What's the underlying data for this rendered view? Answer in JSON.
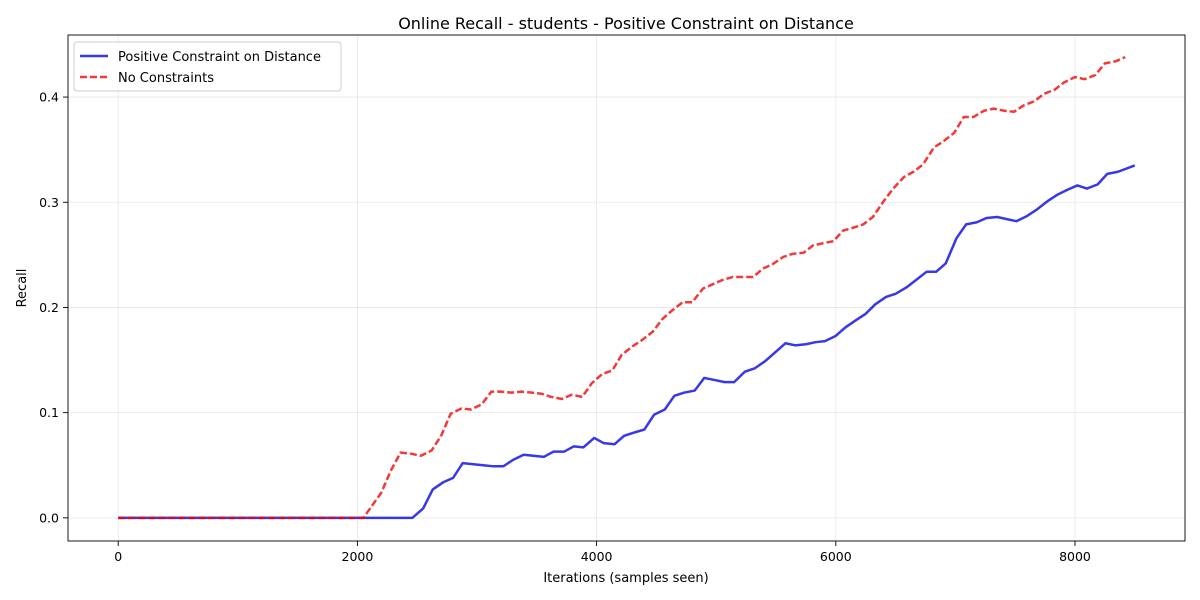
{
  "chart_data": {
    "type": "line",
    "title": "Online Recall - students - Positive Constraint on Distance",
    "xlabel": "Iterations (samples seen)",
    "ylabel": "Recall",
    "xlim": [
      -420,
      8920
    ],
    "ylim": [
      -0.022,
      0.459
    ],
    "xticks": [
      0,
      2000,
      4000,
      6000,
      8000
    ],
    "xtick_labels": [
      "0",
      "2000",
      "4000",
      "6000",
      "8000"
    ],
    "yticks": [
      0.0,
      0.1,
      0.2,
      0.3,
      0.4
    ],
    "ytick_labels": [
      "0.0",
      "0.1",
      "0.2",
      "0.3",
      "0.4"
    ],
    "grid": true,
    "legend_position": "upper-left",
    "series": [
      {
        "name": "Positive Constraint on Distance",
        "color": "#0000e0",
        "style": "solid",
        "points": [
          [
            0,
            0
          ],
          [
            2460,
            0
          ],
          [
            2550,
            0.009
          ],
          [
            2630,
            0.027
          ],
          [
            2720,
            0.034
          ],
          [
            2800,
            0.038
          ],
          [
            2880,
            0.052
          ],
          [
            2970,
            0.051
          ],
          [
            3050,
            0.05
          ],
          [
            3140,
            0.049
          ],
          [
            3220,
            0.049
          ],
          [
            3300,
            0.055
          ],
          [
            3390,
            0.06
          ],
          [
            3470,
            0.059
          ],
          [
            3560,
            0.058
          ],
          [
            3640,
            0.063
          ],
          [
            3730,
            0.063
          ],
          [
            3810,
            0.068
          ],
          [
            3890,
            0.067
          ],
          [
            3980,
            0.076
          ],
          [
            4060,
            0.071
          ],
          [
            4150,
            0.07
          ],
          [
            4230,
            0.078
          ],
          [
            4310,
            0.081
          ],
          [
            4400,
            0.084
          ],
          [
            4480,
            0.098
          ],
          [
            4570,
            0.103
          ],
          [
            4650,
            0.116
          ],
          [
            4730,
            0.119
          ],
          [
            4820,
            0.121
          ],
          [
            4900,
            0.133
          ],
          [
            4990,
            0.131
          ],
          [
            5070,
            0.129
          ],
          [
            5150,
            0.129
          ],
          [
            5240,
            0.139
          ],
          [
            5320,
            0.142
          ],
          [
            5410,
            0.149
          ],
          [
            5490,
            0.157
          ],
          [
            5580,
            0.166
          ],
          [
            5660,
            0.164
          ],
          [
            5750,
            0.165
          ],
          [
            5830,
            0.167
          ],
          [
            5910,
            0.168
          ],
          [
            6000,
            0.173
          ],
          [
            6080,
            0.181
          ],
          [
            6170,
            0.188
          ],
          [
            6250,
            0.194
          ],
          [
            6330,
            0.203
          ],
          [
            6420,
            0.21
          ],
          [
            6500,
            0.213
          ],
          [
            6590,
            0.219
          ],
          [
            6670,
            0.226
          ],
          [
            6760,
            0.234
          ],
          [
            6840,
            0.234
          ],
          [
            6920,
            0.242
          ],
          [
            7010,
            0.266
          ],
          [
            7090,
            0.279
          ],
          [
            7180,
            0.281
          ],
          [
            7260,
            0.285
          ],
          [
            7350,
            0.286
          ],
          [
            7430,
            0.284
          ],
          [
            7510,
            0.282
          ],
          [
            7600,
            0.287
          ],
          [
            7680,
            0.293
          ],
          [
            7770,
            0.301
          ],
          [
            7850,
            0.307
          ],
          [
            7940,
            0.312
          ],
          [
            8020,
            0.316
          ],
          [
            8100,
            0.313
          ],
          [
            8190,
            0.317
          ],
          [
            8270,
            0.327
          ],
          [
            8360,
            0.329
          ],
          [
            8500,
            0.335
          ]
        ]
      },
      {
        "name": "No Constraints",
        "color": "#f00000",
        "style": "dashed",
        "points": [
          [
            0,
            0
          ],
          [
            2050,
            0
          ],
          [
            2100,
            0.008
          ],
          [
            2200,
            0.024
          ],
          [
            2280,
            0.045
          ],
          [
            2360,
            0.062
          ],
          [
            2450,
            0.061
          ],
          [
            2530,
            0.059
          ],
          [
            2620,
            0.064
          ],
          [
            2700,
            0.078
          ],
          [
            2780,
            0.099
          ],
          [
            2870,
            0.104
          ],
          [
            2950,
            0.103
          ],
          [
            3040,
            0.108
          ],
          [
            3120,
            0.12
          ],
          [
            3200,
            0.12
          ],
          [
            3290,
            0.119
          ],
          [
            3370,
            0.12
          ],
          [
            3460,
            0.119
          ],
          [
            3540,
            0.118
          ],
          [
            3620,
            0.115
          ],
          [
            3710,
            0.113
          ],
          [
            3790,
            0.117
          ],
          [
            3880,
            0.115
          ],
          [
            3960,
            0.128
          ],
          [
            4050,
            0.137
          ],
          [
            4130,
            0.14
          ],
          [
            4210,
            0.155
          ],
          [
            4300,
            0.163
          ],
          [
            4380,
            0.169
          ],
          [
            4470,
            0.177
          ],
          [
            4550,
            0.189
          ],
          [
            4630,
            0.197
          ],
          [
            4720,
            0.205
          ],
          [
            4800,
            0.205
          ],
          [
            4890,
            0.218
          ],
          [
            4970,
            0.222
          ],
          [
            5050,
            0.226
          ],
          [
            5140,
            0.229
          ],
          [
            5220,
            0.229
          ],
          [
            5310,
            0.229
          ],
          [
            5390,
            0.237
          ],
          [
            5470,
            0.241
          ],
          [
            5560,
            0.248
          ],
          [
            5640,
            0.251
          ],
          [
            5730,
            0.252
          ],
          [
            5810,
            0.259
          ],
          [
            5890,
            0.261
          ],
          [
            5980,
            0.263
          ],
          [
            6060,
            0.273
          ],
          [
            6150,
            0.276
          ],
          [
            6230,
            0.279
          ],
          [
            6310,
            0.286
          ],
          [
            6400,
            0.301
          ],
          [
            6480,
            0.313
          ],
          [
            6570,
            0.324
          ],
          [
            6650,
            0.329
          ],
          [
            6730,
            0.336
          ],
          [
            6820,
            0.352
          ],
          [
            6900,
            0.358
          ],
          [
            6990,
            0.366
          ],
          [
            7070,
            0.381
          ],
          [
            7150,
            0.381
          ],
          [
            7240,
            0.387
          ],
          [
            7320,
            0.389
          ],
          [
            7410,
            0.387
          ],
          [
            7490,
            0.386
          ],
          [
            7570,
            0.392
          ],
          [
            7660,
            0.396
          ],
          [
            7740,
            0.403
          ],
          [
            7830,
            0.407
          ],
          [
            7910,
            0.414
          ],
          [
            8000,
            0.419
          ],
          [
            8080,
            0.417
          ],
          [
            8170,
            0.421
          ],
          [
            8250,
            0.432
          ],
          [
            8340,
            0.434
          ],
          [
            8420,
            0.438
          ]
        ]
      }
    ]
  }
}
